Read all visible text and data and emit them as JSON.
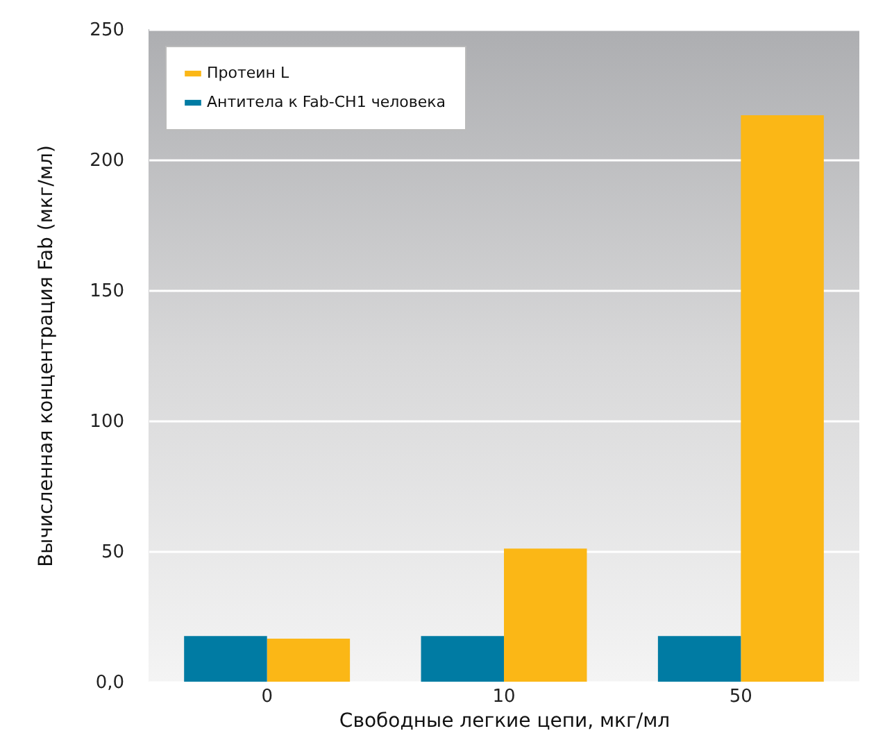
{
  "chart_data": {
    "type": "bar",
    "xlabel": "Свободные легкие цепи, мкг/мл",
    "ylabel": "Вычисленная концентрация Fab (мкг/мл)",
    "categories": [
      "0",
      "10",
      "50"
    ],
    "series": [
      {
        "name": "Протеин L",
        "color": "#fbb716",
        "values": [
          16.5,
          51,
          217
        ]
      },
      {
        "name": "Антитела к Fab-CH1 человека",
        "color": "#007ba3",
        "values": [
          17.5,
          17.5,
          17.5
        ]
      }
    ],
    "ylim": [
      0,
      250
    ],
    "yticks": [
      {
        "value": 0,
        "label": "0,0"
      },
      50,
      100,
      150,
      200,
      250
    ],
    "grid": "y",
    "legend": "top left"
  }
}
